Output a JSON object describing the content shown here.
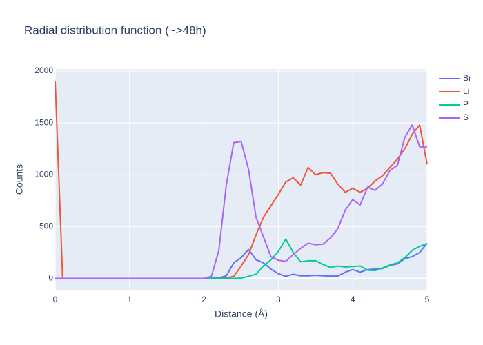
{
  "chart_data": {
    "type": "line",
    "title": "Radial distribution function (~>48h)",
    "x_label": "Distance (Å)",
    "y_label": "Counts",
    "x": [
      0,
      0.1,
      0.2,
      0.3,
      0.4,
      0.5,
      0.6,
      0.7,
      0.8,
      0.9,
      1,
      1.1,
      1.2,
      1.3,
      1.4,
      1.5,
      1.6,
      1.7,
      1.8,
      1.9,
      2,
      2.1,
      2.2,
      2.3,
      2.4,
      2.5,
      2.6,
      2.7,
      2.8,
      2.9,
      3,
      3.1,
      3.2,
      3.3,
      3.4,
      3.5,
      3.6,
      3.7,
      3.8,
      3.9,
      4,
      4.1,
      4.2,
      4.3,
      4.4,
      4.5,
      4.6,
      4.7,
      4.8,
      4.9,
      5
    ],
    "series": [
      {
        "name": "Br",
        "color": "#636efa",
        "values": [
          0,
          0,
          0,
          0,
          0,
          0,
          0,
          0,
          0,
          0,
          0,
          0,
          0,
          0,
          0,
          0,
          0,
          0,
          0,
          0,
          0,
          2,
          5,
          25,
          150,
          200,
          280,
          180,
          150,
          90,
          45,
          20,
          40,
          25,
          25,
          30,
          25,
          22,
          22,
          60,
          85,
          60,
          85,
          90,
          95,
          125,
          140,
          190,
          210,
          250,
          340
        ]
      },
      {
        "name": "Li",
        "color": "#EF553B",
        "values": [
          1900,
          0,
          0,
          0,
          0,
          0,
          0,
          0,
          0,
          0,
          0,
          0,
          0,
          0,
          0,
          0,
          0,
          0,
          0,
          0,
          0,
          0,
          0,
          5,
          20,
          120,
          230,
          420,
          590,
          700,
          810,
          930,
          970,
          900,
          1070,
          1000,
          1020,
          1015,
          910,
          830,
          870,
          830,
          870,
          940,
          990,
          1070,
          1150,
          1250,
          1390,
          1480,
          1100
        ]
      },
      {
        "name": "P",
        "color": "#00cc96",
        "values": [
          null,
          null,
          null,
          null,
          null,
          null,
          null,
          null,
          null,
          null,
          null,
          null,
          null,
          null,
          null,
          null,
          null,
          null,
          null,
          null,
          0,
          0,
          0,
          0,
          0,
          2,
          20,
          40,
          120,
          180,
          260,
          380,
          250,
          160,
          170,
          170,
          135,
          105,
          120,
          110,
          115,
          120,
          80,
          75,
          100,
          130,
          150,
          200,
          270,
          310,
          335
        ]
      },
      {
        "name": "S",
        "color": "#ab63fa",
        "values": [
          0,
          0,
          0,
          0,
          0,
          0,
          0,
          0,
          0,
          0,
          0,
          0,
          0,
          0,
          0,
          0,
          0,
          0,
          0,
          0,
          0,
          20,
          270,
          900,
          1310,
          1320,
          1050,
          590,
          400,
          210,
          175,
          165,
          230,
          290,
          340,
          325,
          330,
          390,
          480,
          660,
          760,
          710,
          880,
          850,
          910,
          1040,
          1090,
          1360,
          1480,
          1270,
          1265
        ]
      }
    ],
    "xlim": [
      0,
      5
    ],
    "xticks": [
      0,
      1,
      2,
      3,
      4,
      5
    ],
    "ylim": [
      -110,
      2020
    ],
    "yticks": [
      0,
      500,
      1000,
      1500,
      2000
    ],
    "grid": true,
    "legend": "right"
  }
}
